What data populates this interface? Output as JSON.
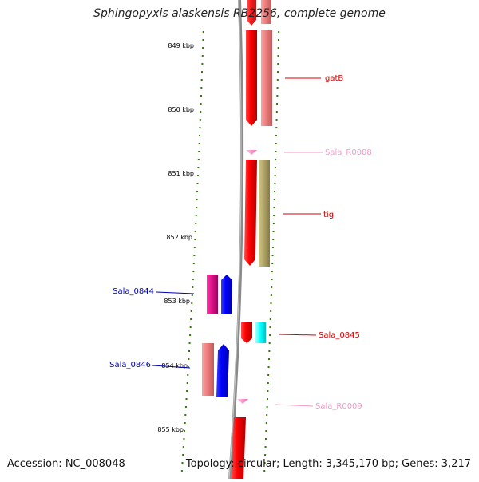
{
  "title": "Sphingopyxis alaskensis RB2256, complete genome",
  "footer": {
    "accession": "Accession: NC_008048",
    "summary": "Topology: circular; Length: 3,345,170 bp; Genes: 3,217"
  },
  "scale_labels": [
    "849 kbp",
    "850 kbp",
    "851 kbp",
    "852 kbp",
    "853 kbp",
    "854 kbp",
    "855 kbp"
  ],
  "features": [
    {
      "label": "gatB",
      "color": "#d40000"
    },
    {
      "label": "Sala_R0008",
      "color": "#f29ac8"
    },
    {
      "label": "tig",
      "color": "#d40000"
    },
    {
      "label": "Sala_0844",
      "color": "#0000b4"
    },
    {
      "label": "Sala_0845",
      "color": "#d40000"
    },
    {
      "label": "Sala_0846",
      "color": "#0000b4"
    },
    {
      "label": "Sala_R0009",
      "color": "#f29ac8"
    }
  ],
  "colors": {
    "cds_forward": "#ff0000",
    "cds_forward_light": "#f08080",
    "cds_reverse": "#0000ff",
    "rrna_trna": "#ff9ccf",
    "ncrna": "#e0148c",
    "other": "#b5a96b",
    "cyan": "#00ffff",
    "backbone": "#808080",
    "tick": "#2d7d00"
  }
}
